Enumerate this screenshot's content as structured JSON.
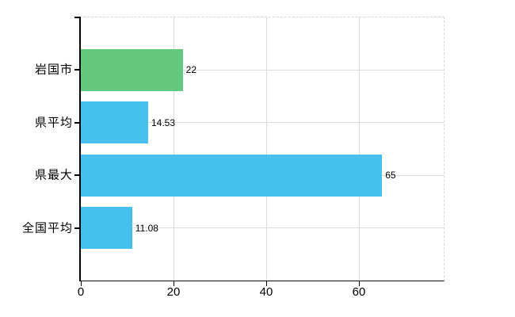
{
  "page": {
    "background_color": "#ffffff"
  },
  "chart_data": {
    "type": "bar",
    "orientation": "horizontal",
    "title": "",
    "xlabel": "",
    "ylabel": "",
    "categories": [
      "岩国市",
      "県平均",
      "県最大",
      "全国平均"
    ],
    "values": [
      22,
      14.53,
      65,
      11.08
    ],
    "value_labels": [
      "22",
      "14.53",
      "65",
      "11.08"
    ],
    "bar_colors": [
      "#64c97e",
      "#45c0ef",
      "#45c0ef",
      "#45c0ef"
    ],
    "xticks": [
      0,
      20,
      40,
      60
    ],
    "xtick_labels": [
      "0",
      "20",
      "40",
      "60"
    ],
    "xlim": [
      0,
      78.3
    ],
    "grid": true,
    "legend": false,
    "gridline_color": "#dadada",
    "axis_color": "#000000",
    "plot_border_style": "dashed-top-right",
    "value_label_position": "outside-end"
  }
}
